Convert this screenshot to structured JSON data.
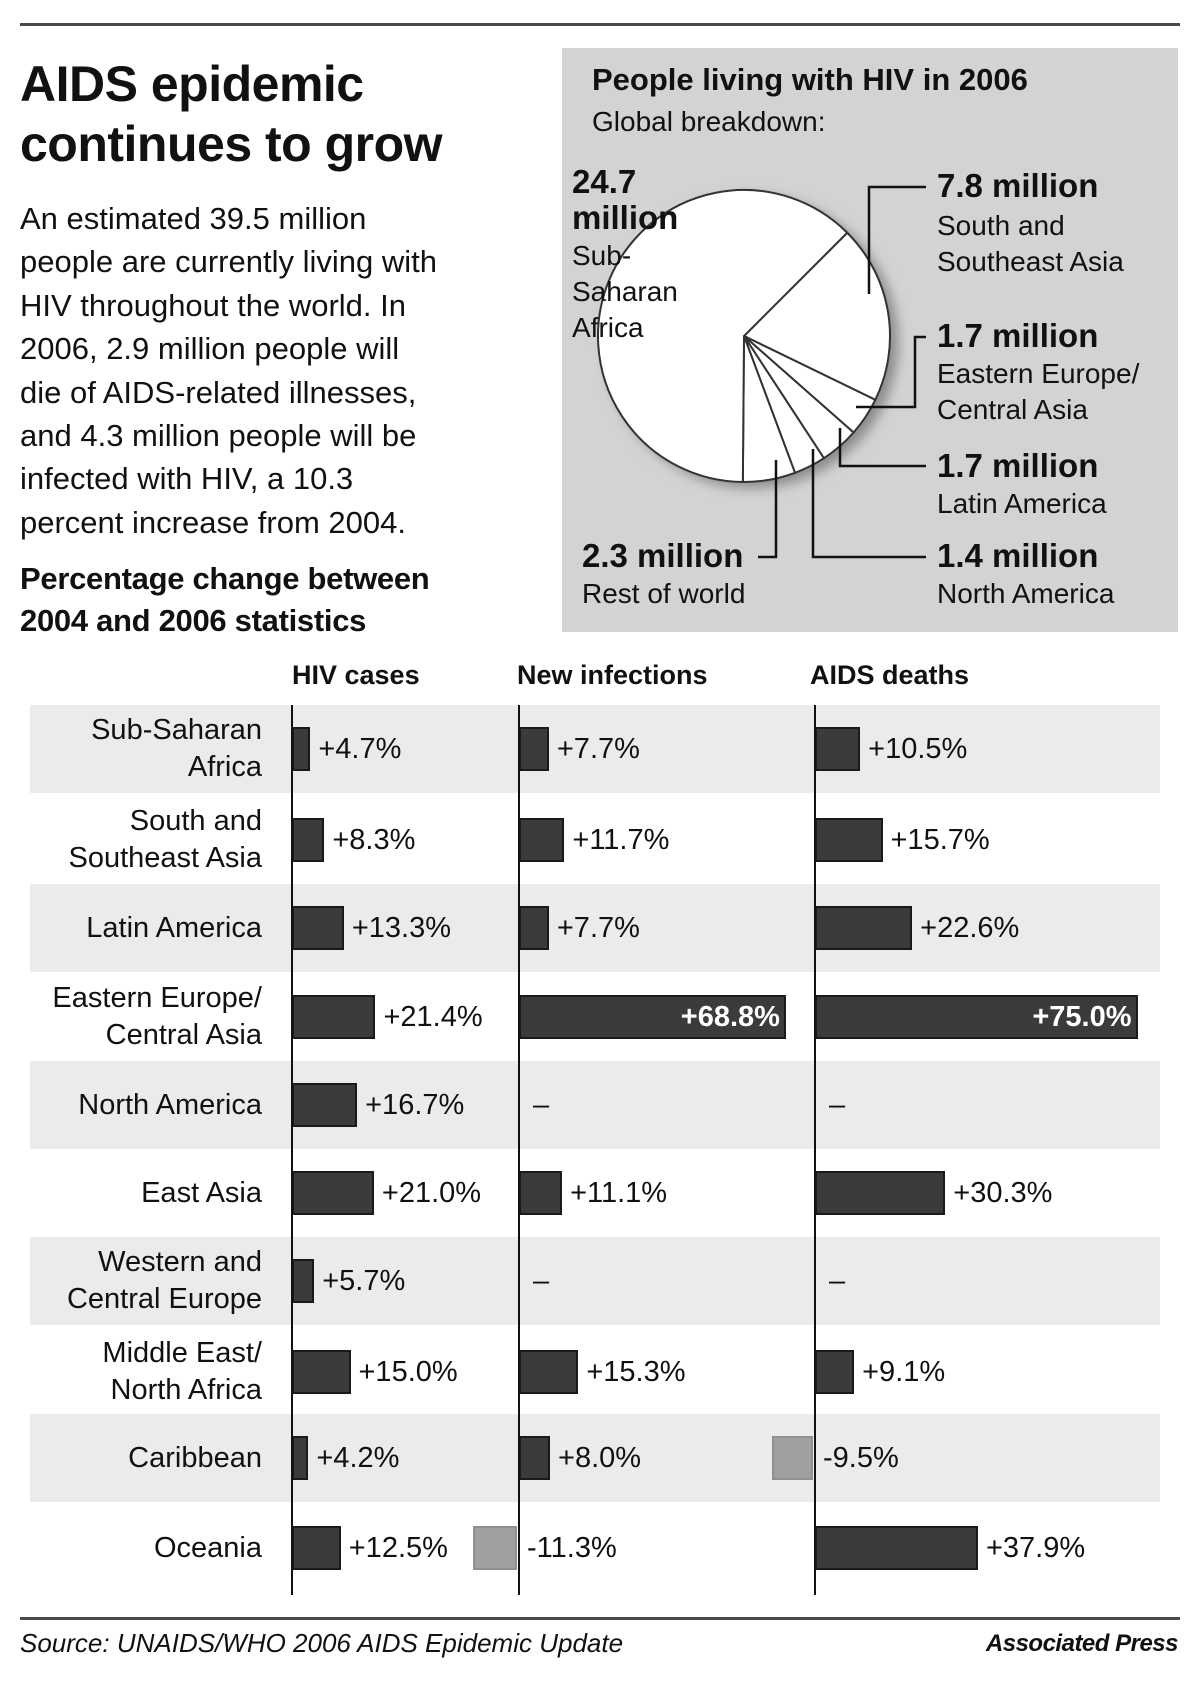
{
  "headline": {
    "title_lines": [
      "AIDS epidemic",
      "continues to grow"
    ],
    "intro_lines": [
      "An estimated 39.5 million",
      "people are currently living with",
      "HIV throughout the world. In",
      "2006, 2.9 million people will",
      "die of AIDS-related illnesses,",
      "and 4.3 million people will be",
      "infected with HIV, a 10.3",
      "percent increase from 2004."
    ],
    "subtitle_lines": [
      "Percentage change between",
      "2004 and 2006 statistics"
    ]
  },
  "chart_data": [
    {
      "type": "pie",
      "title": "People living with HIV in 2006",
      "subtitle": "Global breakdown:",
      "unit": "million",
      "slices": [
        {
          "label": "South and\nSoutheast Asia",
          "value": 7.8,
          "value_label": "7.8 million"
        },
        {
          "label": "Eastern Europe/\nCentral Asia",
          "value": 1.7,
          "value_label": "1.7 million"
        },
        {
          "label": "Latin America",
          "value": 1.7,
          "value_label": "1.7 million"
        },
        {
          "label": "North America",
          "value": 1.4,
          "value_label": "1.4 million"
        },
        {
          "label": "Rest of world",
          "value": 2.3,
          "value_label": "2.3 million"
        },
        {
          "label": "Sub-\nSaharan\nAfrica",
          "value": 24.7,
          "value_label": "24.7\nmillion"
        }
      ],
      "colors": {
        "fill": "#ffffff",
        "stroke": "#333333",
        "background": "#d3d3d3"
      }
    },
    {
      "type": "bar",
      "orientation": "horizontal",
      "title": "Percentage change between 2004 and 2006 statistics",
      "categories": [
        "Sub-Saharan\nAfrica",
        "South and\nSoutheast Asia",
        "Latin America",
        "Eastern Europe/\nCentral Asia",
        "North America",
        "East Asia",
        "Western and\nCentral Europe",
        "Middle East/\nNorth Africa",
        "Caribbean",
        "Oceania"
      ],
      "series": [
        {
          "name": "HIV cases",
          "values": [
            4.7,
            8.3,
            13.3,
            21.4,
            16.7,
            21.0,
            5.7,
            15.0,
            4.2,
            12.5
          ],
          "labels": [
            "+4.7%",
            "+8.3%",
            "+13.3%",
            "+21.4%",
            "+16.7%",
            "+21.0%",
            "+5.7%",
            "+15.0%",
            "+4.2%",
            "+12.5%"
          ]
        },
        {
          "name": "New infections",
          "values": [
            7.7,
            11.7,
            7.7,
            68.8,
            null,
            11.1,
            null,
            15.3,
            8.0,
            -11.3
          ],
          "labels": [
            "+7.7%",
            "+11.7%",
            "+7.7%",
            "+68.8%",
            "–",
            "+11.1%",
            "–",
            "+15.3%",
            "+8.0%",
            "-11.3%"
          ]
        },
        {
          "name": "AIDS deaths",
          "values": [
            10.5,
            15.7,
            22.6,
            75.0,
            null,
            30.3,
            null,
            9.1,
            -9.5,
            37.9
          ],
          "labels": [
            "+10.5%",
            "+15.7%",
            "+22.6%",
            "+75.0%",
            "–",
            "+30.3%",
            "–",
            "+9.1%",
            "-9.5%",
            "+37.9%"
          ]
        }
      ],
      "unit": "%",
      "colors": {
        "positive": "#3b3b3b",
        "negative": "#9f9f9f",
        "band": "#ebebeb"
      }
    }
  ],
  "footer": {
    "source": "Source: UNAIDS/WHO 2006 AIDS Epidemic Update",
    "credit": "Associated Press"
  }
}
